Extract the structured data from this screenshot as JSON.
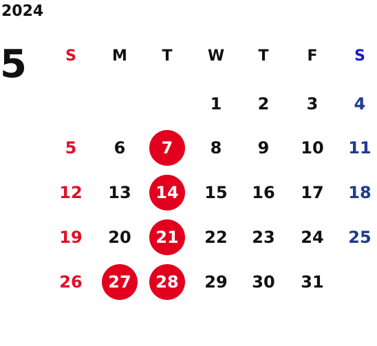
{
  "calendar": {
    "year": "2024",
    "month": "5",
    "weekday_headers": [
      "S",
      "M",
      "T",
      "W",
      "T",
      "F",
      "S"
    ],
    "weeks": [
      [
        "",
        "",
        "",
        "1",
        "2",
        "3",
        "4"
      ],
      [
        "5",
        "6",
        "7",
        "8",
        "9",
        "10",
        "11"
      ],
      [
        "12",
        "13",
        "14",
        "15",
        "16",
        "17",
        "18"
      ],
      [
        "19",
        "20",
        "21",
        "22",
        "23",
        "24",
        "25"
      ],
      [
        "26",
        "27",
        "28",
        "29",
        "30",
        "31",
        ""
      ]
    ],
    "highlighted_dates": [
      "7",
      "14",
      "21",
      "27",
      "28"
    ]
  },
  "colors": {
    "text": "#111111",
    "sunday": "#e0102a",
    "saturday_header": "#1a1acd",
    "saturday": "#1c3c8f",
    "highlight_fill": "#e2001e",
    "highlight_text": "#ffffff"
  }
}
